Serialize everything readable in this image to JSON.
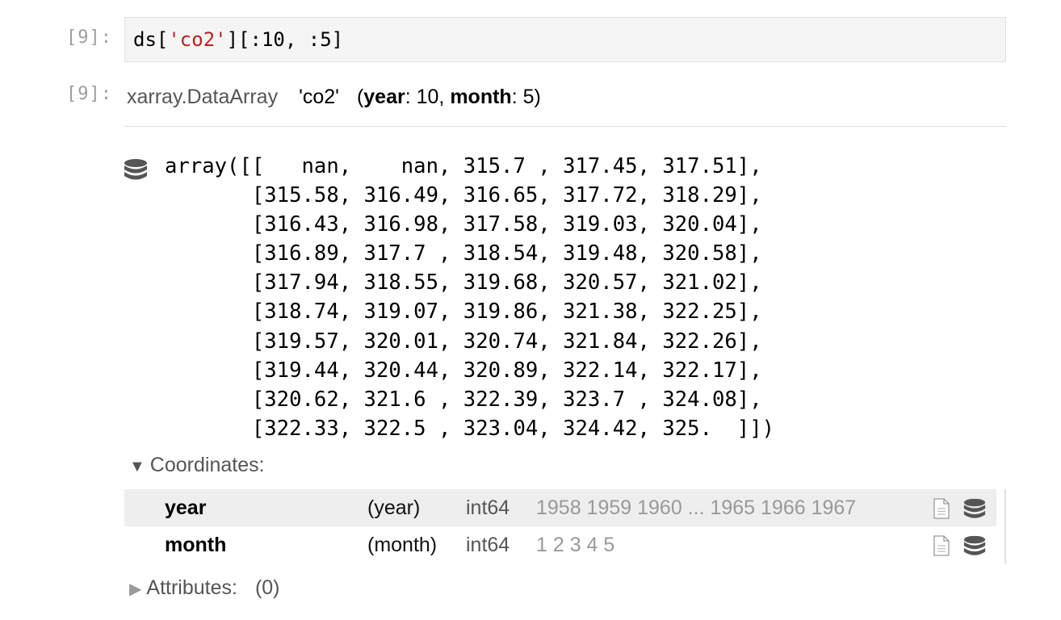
{
  "input_cell": {
    "prompt": "[9]:",
    "code_prefix": "ds[",
    "code_string": "'co2'",
    "code_suffix": "][:10, :5]"
  },
  "output_cell": {
    "prompt": "[9]:",
    "object_type": "xarray.DataArray",
    "name": "'co2'",
    "dims_open": "(",
    "dim1_name": "year",
    "dim1_size": ": 10, ",
    "dim2_name": "month",
    "dim2_size": ": 5)",
    "array_repr": "array([[   nan,    nan, 315.7 , 317.45, 317.51],\n       [315.58, 316.49, 316.65, 317.72, 318.29],\n       [316.43, 316.98, 317.58, 319.03, 320.04],\n       [316.89, 317.7 , 318.54, 319.48, 320.58],\n       [317.94, 318.55, 319.68, 320.57, 321.02],\n       [318.74, 319.07, 319.86, 321.38, 322.25],\n       [319.57, 320.01, 320.74, 321.84, 322.26],\n       [319.44, 320.44, 320.89, 322.14, 322.17],\n       [320.62, 321.6 , 322.39, 323.7 , 324.08],\n       [322.33, 322.5 , 323.04, 324.42, 325.  ]])",
    "coordinates": {
      "arrow": "▼",
      "label": "Coordinates:",
      "rows": [
        {
          "name": "year",
          "dims": "(year)",
          "dtype": "int64",
          "preview": "1958 1959 1960 ... 1965 1966 1967"
        },
        {
          "name": "month",
          "dims": "(month)",
          "dtype": "int64",
          "preview": "1 2 3 4 5"
        }
      ]
    },
    "attributes": {
      "arrow": "▶",
      "label": "Attributes:",
      "count": "(0)"
    }
  },
  "icons": {
    "array_icon": "database-icon",
    "doc_icon": "document-icon",
    "data_icon": "database-icon"
  },
  "colors": {
    "code_string": "#ba2121",
    "code_bg": "#f5f5f5",
    "highlight_row": "#eeeeee",
    "muted_text": "#999999"
  }
}
